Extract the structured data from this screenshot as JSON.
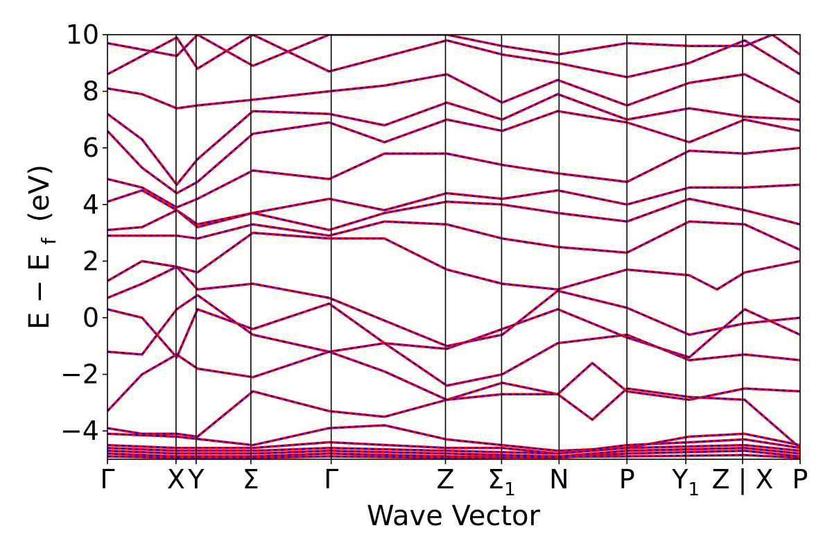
{
  "chart_data": {
    "type": "line",
    "title": "",
    "xlabel": "Wave Vector",
    "ylabel": "E − E",
    "ylabel_subscript": "f",
    "ylabel_unit": "(eV)",
    "ylim": [
      -5,
      10
    ],
    "yticks": [
      -4,
      -2,
      0,
      2,
      4,
      6,
      8,
      10
    ],
    "ytick_labels": [
      "−4",
      "−2",
      "0",
      "2",
      "4",
      "6",
      "8",
      "10"
    ],
    "grid": false,
    "legend": "none",
    "x_path": [
      {
        "label": "Γ",
        "sub": "",
        "x": 0.0,
        "vline": false
      },
      {
        "label": "X",
        "sub": "",
        "x": 0.099,
        "vline": true
      },
      {
        "label": "Y",
        "sub": "",
        "x": 0.128,
        "vline": true
      },
      {
        "label": "Σ",
        "sub": "",
        "x": 0.207,
        "vline": true
      },
      {
        "label": "Γ",
        "sub": "",
        "x": 0.323,
        "vline": true
      },
      {
        "label": "Z",
        "sub": "",
        "x": 0.488,
        "vline": true
      },
      {
        "label": "Σ",
        "sub": "1",
        "x": 0.569,
        "vline": true
      },
      {
        "label": "N",
        "sub": "",
        "x": 0.652,
        "vline": true
      },
      {
        "label": "P",
        "sub": "",
        "x": 0.75,
        "vline": true
      },
      {
        "label": "Y",
        "sub": "1",
        "x": 0.835,
        "vline": true
      },
      {
        "label": "Z | X",
        "sub": "",
        "x": 0.917,
        "vline": true
      },
      {
        "label": "P",
        "sub": "",
        "x": 1.0,
        "vline": false
      }
    ],
    "series_styles": [
      {
        "color": "#ff0000",
        "dash": "solid"
      },
      {
        "color": "#0000ff",
        "dash": "dashed"
      }
    ],
    "bands": [
      [
        [
          0,
          9.7
        ],
        [
          0.1,
          9.25
        ],
        [
          0.13,
          10.0
        ],
        [
          0.21,
          8.9
        ],
        [
          0.32,
          10.0
        ],
        [
          0.49,
          10.0
        ],
        [
          0.57,
          9.6
        ],
        [
          0.65,
          9.3
        ],
        [
          0.75,
          9.7
        ],
        [
          0.84,
          9.6
        ],
        [
          0.92,
          9.6
        ],
        [
          0.96,
          10.0
        ],
        [
          1.0,
          9.3
        ]
      ],
      [
        [
          0,
          8.6
        ],
        [
          0.1,
          9.9
        ],
        [
          0.13,
          8.8
        ],
        [
          0.21,
          10.0
        ],
        [
          0.32,
          8.7
        ],
        [
          0.49,
          9.8
        ],
        [
          0.57,
          9.3
        ],
        [
          0.65,
          9.0
        ],
        [
          0.75,
          8.5
        ],
        [
          0.84,
          9.0
        ],
        [
          0.92,
          9.8
        ],
        [
          1.0,
          8.6
        ]
      ],
      [
        [
          0,
          8.1
        ],
        [
          0.05,
          7.9
        ],
        [
          0.1,
          7.4
        ],
        [
          0.13,
          7.5
        ],
        [
          0.21,
          7.7
        ],
        [
          0.32,
          8.0
        ],
        [
          0.4,
          8.2
        ],
        [
          0.49,
          8.6
        ],
        [
          0.57,
          7.6
        ],
        [
          0.65,
          8.4
        ],
        [
          0.75,
          7.5
        ],
        [
          0.84,
          8.3
        ],
        [
          0.92,
          8.6
        ],
        [
          1.0,
          7.6
        ]
      ],
      [
        [
          0,
          7.2
        ],
        [
          0.05,
          6.3
        ],
        [
          0.1,
          4.7
        ],
        [
          0.13,
          5.6
        ],
        [
          0.21,
          7.3
        ],
        [
          0.32,
          7.2
        ],
        [
          0.4,
          6.8
        ],
        [
          0.49,
          7.6
        ],
        [
          0.57,
          7.0
        ],
        [
          0.65,
          7.9
        ],
        [
          0.75,
          7.0
        ],
        [
          0.84,
          7.4
        ],
        [
          0.92,
          7.1
        ],
        [
          1.0,
          7.0
        ]
      ],
      [
        [
          0,
          6.6
        ],
        [
          0.05,
          5.3
        ],
        [
          0.1,
          4.4
        ],
        [
          0.13,
          4.8
        ],
        [
          0.21,
          6.5
        ],
        [
          0.32,
          6.9
        ],
        [
          0.4,
          6.2
        ],
        [
          0.49,
          7.0
        ],
        [
          0.57,
          6.6
        ],
        [
          0.65,
          7.3
        ],
        [
          0.75,
          6.9
        ],
        [
          0.84,
          6.2
        ],
        [
          0.92,
          7.0
        ],
        [
          1.0,
          6.6
        ]
      ],
      [
        [
          0,
          4.9
        ],
        [
          0.05,
          4.6
        ],
        [
          0.1,
          3.9
        ],
        [
          0.13,
          4.2
        ],
        [
          0.21,
          5.2
        ],
        [
          0.32,
          4.9
        ],
        [
          0.4,
          5.8
        ],
        [
          0.49,
          5.8
        ],
        [
          0.57,
          5.4
        ],
        [
          0.65,
          5.1
        ],
        [
          0.75,
          4.8
        ],
        [
          0.84,
          5.9
        ],
        [
          0.92,
          5.8
        ],
        [
          1.0,
          6.0
        ]
      ],
      [
        [
          0,
          4.1
        ],
        [
          0.05,
          4.5
        ],
        [
          0.1,
          3.8
        ],
        [
          0.13,
          3.3
        ],
        [
          0.21,
          3.7
        ],
        [
          0.32,
          4.2
        ],
        [
          0.4,
          3.8
        ],
        [
          0.49,
          4.4
        ],
        [
          0.57,
          4.2
        ],
        [
          0.65,
          4.5
        ],
        [
          0.75,
          4.0
        ],
        [
          0.84,
          4.6
        ],
        [
          0.92,
          4.6
        ],
        [
          1.0,
          4.7
        ]
      ],
      [
        [
          0,
          3.1
        ],
        [
          0.05,
          3.2
        ],
        [
          0.1,
          3.8
        ],
        [
          0.13,
          3.2
        ],
        [
          0.21,
          3.7
        ],
        [
          0.32,
          3.1
        ],
        [
          0.4,
          3.7
        ],
        [
          0.49,
          4.1
        ],
        [
          0.57,
          4.0
        ],
        [
          0.65,
          3.7
        ],
        [
          0.75,
          3.4
        ],
        [
          0.84,
          4.2
        ],
        [
          0.92,
          3.8
        ],
        [
          1.0,
          3.3
        ]
      ],
      [
        [
          0,
          2.9
        ],
        [
          0.05,
          2.9
        ],
        [
          0.1,
          2.9
        ],
        [
          0.13,
          2.8
        ],
        [
          0.21,
          3.3
        ],
        [
          0.32,
          2.9
        ],
        [
          0.4,
          3.4
        ],
        [
          0.49,
          3.3
        ],
        [
          0.57,
          2.8
        ],
        [
          0.65,
          2.5
        ],
        [
          0.75,
          2.3
        ],
        [
          0.84,
          3.4
        ],
        [
          0.92,
          3.3
        ],
        [
          1.0,
          2.4
        ]
      ],
      [
        [
          0,
          1.3
        ],
        [
          0.05,
          2.0
        ],
        [
          0.1,
          1.8
        ],
        [
          0.13,
          1.6
        ],
        [
          0.21,
          3.0
        ],
        [
          0.32,
          2.8
        ],
        [
          0.4,
          2.8
        ],
        [
          0.49,
          1.7
        ],
        [
          0.57,
          1.2
        ],
        [
          0.65,
          1.0
        ],
        [
          0.75,
          1.7
        ],
        [
          0.84,
          1.5
        ],
        [
          0.88,
          1.0
        ],
        [
          0.92,
          1.6
        ],
        [
          1.0,
          2.0
        ]
      ],
      [
        [
          0,
          0.7
        ],
        [
          0.05,
          1.2
        ],
        [
          0.1,
          1.8
        ],
        [
          0.13,
          1.0
        ],
        [
          0.21,
          1.2
        ],
        [
          0.32,
          0.7
        ],
        [
          0.4,
          -0.1
        ],
        [
          0.49,
          -1.0
        ],
        [
          0.57,
          -0.6
        ],
        [
          0.65,
          0.95
        ],
        [
          0.75,
          0.35
        ],
        [
          0.84,
          -0.6
        ],
        [
          0.92,
          -0.2
        ],
        [
          1.0,
          0.0
        ]
      ],
      [
        [
          0,
          0.3
        ],
        [
          0.05,
          0.0
        ],
        [
          0.1,
          -1.4
        ],
        [
          0.13,
          0.3
        ],
        [
          0.21,
          -0.4
        ],
        [
          0.32,
          0.5
        ],
        [
          0.4,
          -0.9
        ],
        [
          0.49,
          -1.1
        ],
        [
          0.57,
          -0.4
        ],
        [
          0.65,
          0.3
        ],
        [
          0.75,
          -0.7
        ],
        [
          0.84,
          -1.4
        ],
        [
          0.92,
          0.3
        ],
        [
          1.0,
          -0.6
        ]
      ],
      [
        [
          0,
          -1.2
        ],
        [
          0.05,
          -1.3
        ],
        [
          0.1,
          0.3
        ],
        [
          0.13,
          0.8
        ],
        [
          0.21,
          -0.6
        ],
        [
          0.32,
          -1.2
        ],
        [
          0.4,
          -0.9
        ],
        [
          0.49,
          -2.4
        ],
        [
          0.57,
          -2.0
        ],
        [
          0.65,
          -0.9
        ],
        [
          0.75,
          -0.6
        ],
        [
          0.84,
          -1.5
        ],
        [
          0.92,
          -1.3
        ],
        [
          1.0,
          -1.5
        ]
      ],
      [
        [
          0,
          -3.3
        ],
        [
          0.05,
          -2.0
        ],
        [
          0.1,
          -1.3
        ],
        [
          0.13,
          -1.8
        ],
        [
          0.21,
          -2.1
        ],
        [
          0.32,
          -1.2
        ],
        [
          0.4,
          -1.9
        ],
        [
          0.49,
          -2.9
        ],
        [
          0.57,
          -2.3
        ],
        [
          0.65,
          -2.7
        ],
        [
          0.7,
          -1.6
        ],
        [
          0.75,
          -2.6
        ],
        [
          0.84,
          -2.9
        ],
        [
          0.92,
          -2.5
        ],
        [
          1.0,
          -2.6
        ]
      ],
      [
        [
          0,
          -3.9
        ],
        [
          0.05,
          -4.1
        ],
        [
          0.1,
          -4.1
        ],
        [
          0.13,
          -4.2
        ],
        [
          0.21,
          -2.6
        ],
        [
          0.32,
          -3.3
        ],
        [
          0.4,
          -3.5
        ],
        [
          0.49,
          -2.9
        ],
        [
          0.57,
          -2.7
        ],
        [
          0.65,
          -2.7
        ],
        [
          0.7,
          -3.6
        ],
        [
          0.75,
          -2.5
        ],
        [
          0.84,
          -2.8
        ],
        [
          0.92,
          -2.9
        ],
        [
          1.0,
          -4.6
        ]
      ],
      [
        [
          0,
          -4.1
        ],
        [
          0.1,
          -4.2
        ],
        [
          0.21,
          -4.5
        ],
        [
          0.32,
          -3.9
        ],
        [
          0.4,
          -3.8
        ],
        [
          0.49,
          -4.3
        ],
        [
          0.57,
          -4.5
        ],
        [
          0.65,
          -4.7
        ],
        [
          0.75,
          -4.6
        ],
        [
          0.84,
          -4.2
        ],
        [
          0.92,
          -4.1
        ],
        [
          1.0,
          -4.5
        ]
      ],
      [
        [
          0,
          -4.5
        ],
        [
          0.1,
          -4.6
        ],
        [
          0.21,
          -4.6
        ],
        [
          0.32,
          -4.4
        ],
        [
          0.49,
          -4.6
        ],
        [
          0.57,
          -4.6
        ],
        [
          0.65,
          -4.8
        ],
        [
          0.75,
          -4.5
        ],
        [
          0.84,
          -4.4
        ],
        [
          0.92,
          -4.3
        ],
        [
          1.0,
          -4.6
        ]
      ],
      [
        [
          0,
          -4.6
        ],
        [
          0.1,
          -4.7
        ],
        [
          0.21,
          -4.7
        ],
        [
          0.32,
          -4.6
        ],
        [
          0.49,
          -4.7
        ],
        [
          0.65,
          -4.8
        ],
        [
          0.75,
          -4.6
        ],
        [
          0.92,
          -4.5
        ],
        [
          1.0,
          -4.7
        ]
      ],
      [
        [
          0,
          -4.7
        ],
        [
          0.1,
          -4.8
        ],
        [
          0.21,
          -4.8
        ],
        [
          0.32,
          -4.7
        ],
        [
          0.49,
          -4.8
        ],
        [
          0.65,
          -4.9
        ],
        [
          0.75,
          -4.7
        ],
        [
          0.92,
          -4.6
        ],
        [
          1.0,
          -4.8
        ]
      ],
      [
        [
          0,
          -4.8
        ],
        [
          0.1,
          -4.9
        ],
        [
          0.21,
          -4.9
        ],
        [
          0.32,
          -4.8
        ],
        [
          0.49,
          -4.9
        ],
        [
          0.65,
          -4.95
        ],
        [
          0.75,
          -4.8
        ],
        [
          0.92,
          -4.7
        ],
        [
          1.0,
          -4.9
        ]
      ],
      [
        [
          0,
          -4.9
        ],
        [
          0.1,
          -4.95
        ],
        [
          0.21,
          -4.95
        ],
        [
          0.32,
          -4.9
        ],
        [
          0.49,
          -4.95
        ],
        [
          0.75,
          -4.9
        ],
        [
          0.92,
          -4.85
        ],
        [
          1.0,
          -4.95
        ]
      ]
    ]
  }
}
